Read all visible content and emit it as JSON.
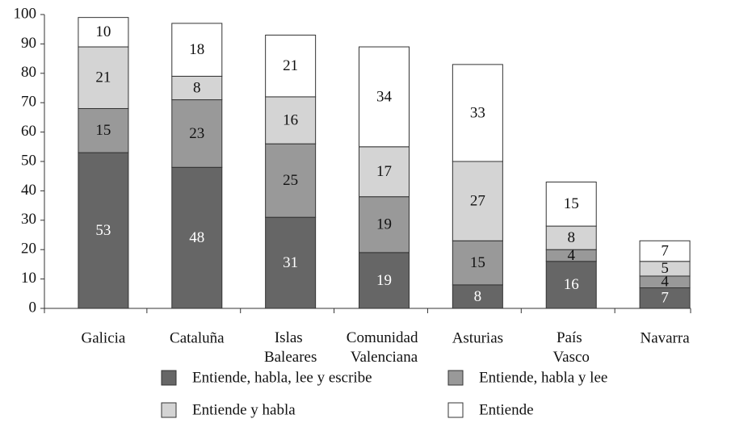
{
  "chart_data": {
    "type": "stacked_bar",
    "categories": [
      "Galicia",
      "Cataluña",
      "Islas Baleares",
      "Comunidad Valenciana",
      "Asturias",
      "País Vasco",
      "Navarra"
    ],
    "series": [
      {
        "name": "Entiende, habla, lee y escribe",
        "color": "#666666",
        "label_color": "#ffffff",
        "values": [
          53,
          48,
          31,
          19,
          8,
          16,
          7
        ]
      },
      {
        "name": "Entiende, habla y lee",
        "color": "#999999",
        "label_color": "#111111",
        "values": [
          15,
          23,
          25,
          19,
          15,
          4,
          4
        ]
      },
      {
        "name": "Entiende y habla",
        "color": "#d4d4d4",
        "label_color": "#111111",
        "values": [
          21,
          8,
          16,
          17,
          27,
          8,
          5
        ]
      },
      {
        "name": "Entiende",
        "color": "#ffffff",
        "label_color": "#111111",
        "values": [
          10,
          18,
          21,
          34,
          33,
          15,
          7
        ]
      }
    ],
    "ylim": [
      0,
      100
    ],
    "yticks": [
      0,
      10,
      20,
      30,
      40,
      50,
      60,
      70,
      80,
      90,
      100
    ],
    "grid": false,
    "legend": "bottom"
  }
}
